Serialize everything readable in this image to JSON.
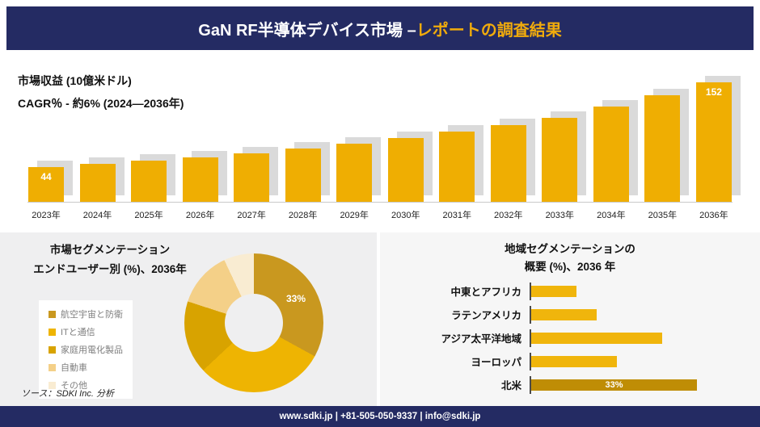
{
  "header": {
    "title_main": "GaN RF半導体デバイス市場 –",
    "title_accent": "レポートの調査結果"
  },
  "revenue": {
    "metric_label": "市場収益 (10億米ドル)",
    "cagr_label": "CAGR％ - 約6% (2024―2036年)"
  },
  "segmentation": {
    "title_line1": "市場セグメンテーション",
    "title_line2": "エンドユーザー別 (%)、2036年"
  },
  "region": {
    "title_line1": "地域セグメンテーションの",
    "title_line2": "概要 (%)、2036 年"
  },
  "source_note": "ソース：SDKI Inc. 分析",
  "footer": {
    "text": "www.sdki.jp | +81-505-050-9337 | info@sdki.jp"
  },
  "colors": {
    "navy": "#242b63",
    "accent_text": "#f0ab0c",
    "bar_gold": "#efae02",
    "bar_shadow": "#dadada",
    "region_gold": "#f0b50c",
    "region_dark": "#bf8d05"
  },
  "chart_data": [
    {
      "type": "bar",
      "title": "市場収益 (10億米ドル)",
      "subtitle": "CAGR％ - 約6% (2024―2036年)",
      "categories": [
        "2023年",
        "2024年",
        "2025年",
        "2026年",
        "2027年",
        "2028年",
        "2029年",
        "2030年",
        "2031年",
        "2032年",
        "2033年",
        "2034年",
        "2035年",
        "2036年"
      ],
      "values": [
        44,
        48,
        52,
        56,
        62,
        68,
        74,
        81,
        89,
        98,
        107,
        121,
        136,
        152
      ],
      "data_labels": [
        "44",
        "",
        "",
        "",
        "",
        "",
        "",
        "",
        "",
        "",
        "",
        "",
        "",
        "152"
      ],
      "bar_color": "#efae02",
      "ylim": [
        0,
        160
      ],
      "ylabel": "市場収益 (10億米ドル)",
      "xlabel": "",
      "grid": false,
      "legend_position": "none"
    },
    {
      "type": "pie",
      "donut": true,
      "title": "市場セグメンテーション エンドユーザー別 (%)、2036年",
      "categories": [
        "航空宇宙と防衛",
        "ITと通信",
        "家庭用電化製品",
        "自動車",
        "その他"
      ],
      "values": [
        33,
        30,
        17,
        13,
        7
      ],
      "colors": [
        "#c9981f",
        "#eeb402",
        "#d8a300",
        "#f4d088",
        "#f9ecd2"
      ],
      "data_labels": [
        "33%",
        "",
        "",
        "",
        ""
      ],
      "legend_position": "left"
    },
    {
      "type": "bar",
      "orientation": "horizontal",
      "title": "地域セグメンテーションの概要 (%)、2036 年",
      "categories": [
        "中東とアフリカ",
        "ラテンアメリカ",
        "アジア太平洋地域",
        "ヨーロッパ",
        "北米"
      ],
      "values": [
        9,
        13,
        26,
        17,
        33
      ],
      "colors": [
        "#f0b50c",
        "#f0b50c",
        "#f0b50c",
        "#f0b50c",
        "#bf8d05"
      ],
      "data_labels": [
        "",
        "",
        "",
        "",
        "33%"
      ],
      "xlim": [
        0,
        35
      ],
      "grid": false,
      "legend_position": "none"
    }
  ]
}
